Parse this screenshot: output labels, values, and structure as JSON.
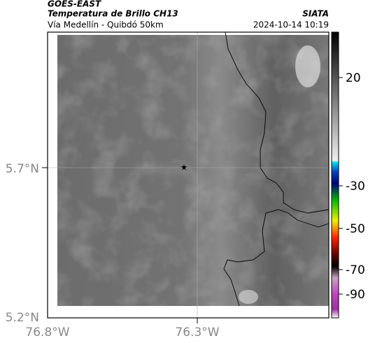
{
  "header": {
    "satellite": "GOES-EAST",
    "product": "Temperatura de Brillo CH13",
    "route": "Vía Medellín - Quibdó 50km",
    "source": "SIATA",
    "datetime": "2024-10-14 10:19"
  },
  "map": {
    "lat_labels": [
      "5.7°N",
      "5.2°N"
    ],
    "lon_labels": [
      "76.8°W",
      "76.3°W"
    ]
  },
  "colorbar": {
    "labels": [
      "20",
      "-30",
      "-50",
      "-70",
      "-90"
    ]
  }
}
